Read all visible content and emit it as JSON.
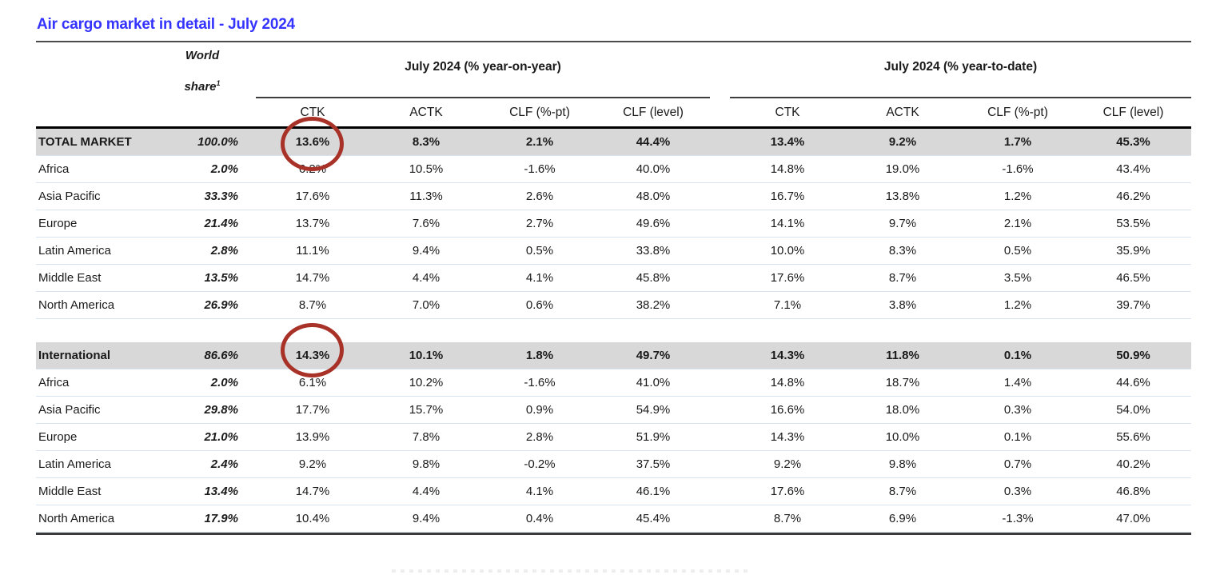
{
  "title": "Air cargo market in detail - July 2024",
  "table": {
    "world_share_header": {
      "line1": "World",
      "line2": "share",
      "sup": "1"
    },
    "group_headers": [
      "July 2024 (% year-on-year)",
      "July 2024 (% year-to-date)"
    ],
    "sub_headers": [
      "CTK",
      "ACTK",
      "CLF (%-pt)",
      "CLF (level)",
      "CTK",
      "ACTK",
      "CLF (%-pt)",
      "CLF (level)"
    ],
    "sections": [
      {
        "rows": [
          {
            "label": "TOTAL MARKET",
            "emphasis": true,
            "world_share": "100.0%",
            "values": [
              "13.6%",
              "8.3%",
              "2.1%",
              "44.4%",
              "13.4%",
              "9.2%",
              "1.7%",
              "45.3%"
            ]
          },
          {
            "label": "Africa",
            "emphasis": false,
            "world_share": "2.0%",
            "values": [
              "6.2%",
              "10.5%",
              "-1.6%",
              "40.0%",
              "14.8%",
              "19.0%",
              "-1.6%",
              "43.4%"
            ]
          },
          {
            "label": "Asia Pacific",
            "emphasis": false,
            "world_share": "33.3%",
            "values": [
              "17.6%",
              "11.3%",
              "2.6%",
              "48.0%",
              "16.7%",
              "13.8%",
              "1.2%",
              "46.2%"
            ]
          },
          {
            "label": "Europe",
            "emphasis": false,
            "world_share": "21.4%",
            "values": [
              "13.7%",
              "7.6%",
              "2.7%",
              "49.6%",
              "14.1%",
              "9.7%",
              "2.1%",
              "53.5%"
            ]
          },
          {
            "label": "Latin America",
            "emphasis": false,
            "world_share": "2.8%",
            "values": [
              "11.1%",
              "9.4%",
              "0.5%",
              "33.8%",
              "10.0%",
              "8.3%",
              "0.5%",
              "35.9%"
            ]
          },
          {
            "label": "Middle East",
            "emphasis": false,
            "world_share": "13.5%",
            "values": [
              "14.7%",
              "4.4%",
              "4.1%",
              "45.8%",
              "17.6%",
              "8.7%",
              "3.5%",
              "46.5%"
            ]
          },
          {
            "label": "North America",
            "emphasis": false,
            "world_share": "26.9%",
            "values": [
              "8.7%",
              "7.0%",
              "0.6%",
              "38.2%",
              "7.1%",
              "3.8%",
              "1.2%",
              "39.7%"
            ]
          }
        ]
      },
      {
        "rows": [
          {
            "label": "International",
            "emphasis": true,
            "world_share": "86.6%",
            "values": [
              "14.3%",
              "10.1%",
              "1.8%",
              "49.7%",
              "14.3%",
              "11.8%",
              "0.1%",
              "50.9%"
            ]
          },
          {
            "label": "Africa",
            "emphasis": false,
            "world_share": "2.0%",
            "values": [
              "6.1%",
              "10.2%",
              "-1.6%",
              "41.0%",
              "14.8%",
              "18.7%",
              "1.4%",
              "44.6%"
            ]
          },
          {
            "label": "Asia Pacific",
            "emphasis": false,
            "world_share": "29.8%",
            "values": [
              "17.7%",
              "15.7%",
              "0.9%",
              "54.9%",
              "16.6%",
              "18.0%",
              "0.3%",
              "54.0%"
            ]
          },
          {
            "label": "Europe",
            "emphasis": false,
            "world_share": "21.0%",
            "values": [
              "13.9%",
              "7.8%",
              "2.8%",
              "51.9%",
              "14.3%",
              "10.0%",
              "0.1%",
              "55.6%"
            ]
          },
          {
            "label": "Latin America",
            "emphasis": false,
            "world_share": "2.4%",
            "values": [
              "9.2%",
              "9.8%",
              "-0.2%",
              "37.5%",
              "9.2%",
              "9.8%",
              "0.7%",
              "40.2%"
            ]
          },
          {
            "label": "Middle East",
            "emphasis": false,
            "world_share": "13.4%",
            "values": [
              "14.7%",
              "4.4%",
              "4.1%",
              "46.1%",
              "17.6%",
              "8.7%",
              "0.3%",
              "46.8%"
            ]
          },
          {
            "label": "North America",
            "emphasis": false,
            "world_share": "17.9%",
            "values": [
              "10.4%",
              "9.4%",
              "0.4%",
              "45.4%",
              "8.7%",
              "6.9%",
              "-1.3%",
              "47.0%"
            ]
          }
        ]
      }
    ]
  },
  "annotations": [
    {
      "shape": "ellipse",
      "highlighted_value": "13.6%",
      "target": "TOTAL MARKET / CTK year-on-year"
    },
    {
      "shape": "ellipse",
      "highlighted_value": "14.3%",
      "target": "International / CTK year-on-year"
    }
  ],
  "colors": {
    "title_blue": "#3433ff",
    "highlight_row_gray": "#d8d8d8",
    "row_separator": "#d9e4f1",
    "thick_rule": "#000000",
    "thin_rule": "#4a4a4a",
    "annotation_red": "#a93228"
  }
}
